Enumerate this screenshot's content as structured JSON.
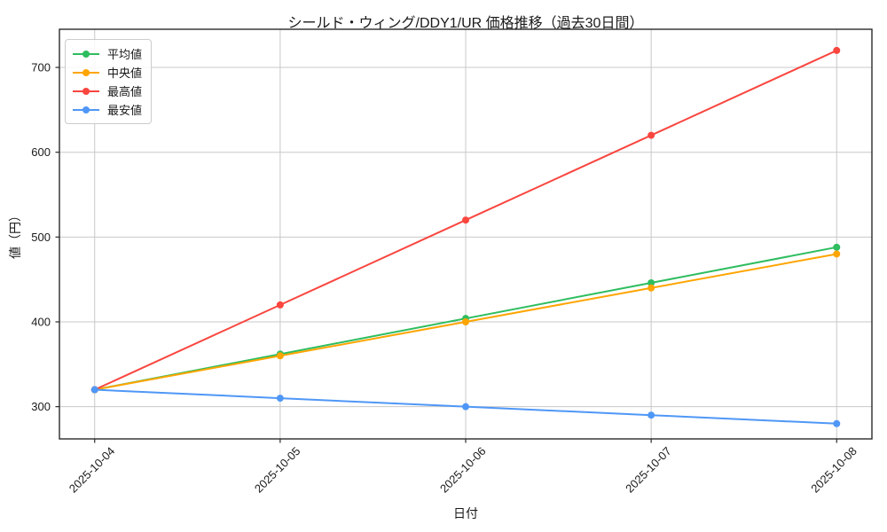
{
  "chart_data": {
    "type": "line",
    "title": "シールド・ウィング/DDY1/UR 価格推移（過去30日間）",
    "xlabel": "日付",
    "ylabel": "値（円）",
    "categories": [
      "2025-10-04",
      "2025-10-05",
      "2025-10-06",
      "2025-10-07",
      "2025-10-08"
    ],
    "series": [
      {
        "name": "平均値",
        "color": "#2ebd5f",
        "values": [
          320,
          362,
          404,
          446,
          488
        ]
      },
      {
        "name": "中央値",
        "color": "#ffa500",
        "values": [
          320,
          360,
          400,
          440,
          480
        ]
      },
      {
        "name": "最高値",
        "color": "#f9463f",
        "values": [
          320,
          420,
          520,
          620,
          720
        ]
      },
      {
        "name": "最安値",
        "color": "#4f97f7",
        "values": [
          320,
          310,
          300,
          290,
          280
        ]
      }
    ],
    "yticks": [
      300,
      400,
      500,
      600,
      700
    ],
    "ylim": [
      262,
      745
    ],
    "xlim": [
      -0.19,
      4.19
    ],
    "grid": true,
    "grid_color": "#c8c8c8",
    "spine_color": "#2a2a2a",
    "text_color": "#1a1a1a",
    "legend_position": "upper-left",
    "x_tick_rotation": 45,
    "marker": "circle",
    "marker_radius": 4,
    "line_width": 2
  }
}
